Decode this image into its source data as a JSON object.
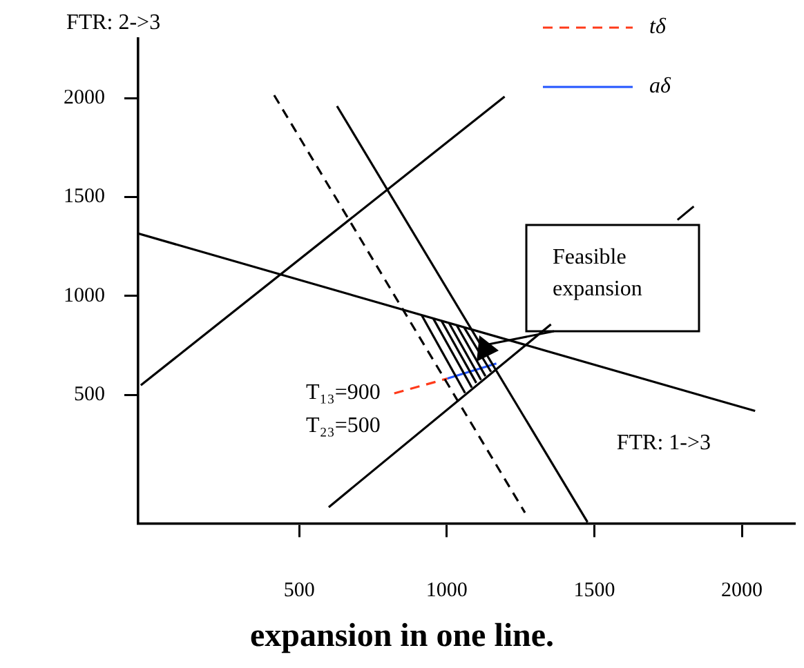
{
  "chart_data": {
    "type": "line",
    "title": "expansion in one line.",
    "xlabel": "FTR: 1->3",
    "ylabel": "FTR: 2->3",
    "xlim": [
      -46,
      2180
    ],
    "ylim": [
      -150,
      2300
    ],
    "xticks": [
      500,
      1000,
      1500,
      2000
    ],
    "yticks": [
      500,
      1000,
      1500,
      2000
    ],
    "grid": false,
    "legend": "top right",
    "marker": "none",
    "series": [
      {
        "x": [
          -46,
          2045
        ],
        "values": [
          1315,
          418
        ],
        "color": "#000000",
        "line_style": "solid"
      },
      {
        "x": [
          -37,
          1196
        ],
        "values": [
          548,
          2007
        ],
        "color": "#000000",
        "line_style": "solid"
      },
      {
        "x": [
          600,
          1353,
          1568,
          1782,
          1837
        ],
        "values": [
          -68,
          856,
          null,
          1384,
          1452
        ],
        "color": "#000000",
        "line_style": "solid"
      },
      {
        "x": [
          415,
          1265
        ],
        "values": [
          2014,
          -96
        ],
        "color": "#000000",
        "line_style": "dashed"
      },
      {
        "x": [
          628,
          1477
        ],
        "values": [
          1959,
          -144
        ],
        "color": "#000000",
        "line_style": "solid"
      },
      {
        "x": [
          915,
          1062
        ],
        "values": [
          902,
          509
        ],
        "color": "#000000",
        "line_style": "solid"
      },
      {
        "x": [
          954,
          1085
        ],
        "values": [
          886,
          536
        ],
        "color": "#000000",
        "line_style": "solid"
      },
      {
        "x": [
          982,
          1100
        ],
        "values": [
          874,
          560
        ],
        "color": "#000000",
        "line_style": "solid"
      },
      {
        "x": [
          1008,
          1116
        ],
        "values": [
          862,
          575
        ],
        "color": "#000000",
        "line_style": "solid"
      },
      {
        "x": [
          1034,
          1131
        ],
        "values": [
          851,
          594
        ],
        "color": "#000000",
        "line_style": "solid"
      },
      {
        "x": [
          1059,
          1150
        ],
        "values": [
          840,
          616
        ],
        "color": "#000000",
        "line_style": "solid"
      },
      {
        "name": "tδ",
        "x": [
          822,
          1002
        ],
        "values": [
          507,
          582
        ],
        "color": "#ff3a1a",
        "line_style": "dashed"
      },
      {
        "name": "aδ",
        "x": [
          1002,
          1168
        ],
        "values": [
          582,
          658
        ],
        "color": "#2255ff",
        "line_style": "solid"
      }
    ],
    "annotations": [
      "Feasible expansion",
      {
        "text": "T₁₃=900\nT₂₃=500",
        "x": 822,
        "y": 507
      }
    ]
  }
}
